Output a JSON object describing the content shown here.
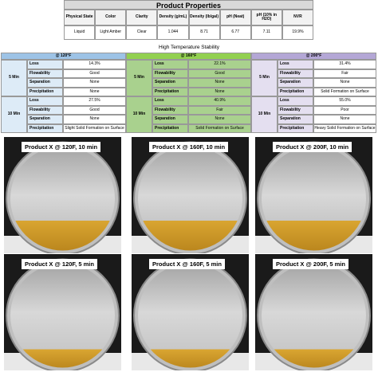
{
  "header": {
    "title": "Product Properties"
  },
  "properties": {
    "columns": [
      "Physical State",
      "Color",
      "Clarity",
      "Density (g/mL)",
      "Density (lb/gal)",
      "pH (Neat)",
      "pH (10% in H2O)",
      "NVR"
    ],
    "values": [
      "Liquid",
      "Light Amber",
      "Clear",
      "1.044",
      "8.71",
      "6.77",
      "7.11",
      "19.9%"
    ]
  },
  "stability": {
    "title": "High Temperature Stability",
    "groups": [
      {
        "label": "@ 120°F",
        "rows": [
          {
            "time": "5 Min",
            "items": [
              {
                "label": "Loss",
                "value": "14.3%"
              },
              {
                "label": "Flowability",
                "value": "Good"
              },
              {
                "label": "Separation",
                "value": "None"
              },
              {
                "label": "Precipitation",
                "value": "None"
              }
            ]
          },
          {
            "time": "10 Min",
            "items": [
              {
                "label": "Loss",
                "value": "27.5%"
              },
              {
                "label": "Flowability",
                "value": "Good"
              },
              {
                "label": "Separation",
                "value": "None"
              },
              {
                "label": "Precipitation",
                "value": "Slight Solid Formation on Surface"
              }
            ]
          }
        ]
      },
      {
        "label": "@ 160°F",
        "rows": [
          {
            "time": "5 Min",
            "items": [
              {
                "label": "Loss",
                "value": "22.1%"
              },
              {
                "label": "Flowability",
                "value": "Good"
              },
              {
                "label": "Separation",
                "value": "None"
              },
              {
                "label": "Precipitation",
                "value": "None"
              }
            ]
          },
          {
            "time": "10 Min",
            "items": [
              {
                "label": "Loss",
                "value": "40.9%"
              },
              {
                "label": "Flowability",
                "value": "Fair"
              },
              {
                "label": "Separation",
                "value": "None"
              },
              {
                "label": "Precipitation",
                "value": "Solid Formation on Surface"
              }
            ]
          }
        ]
      },
      {
        "label": "@ 200°F",
        "rows": [
          {
            "time": "5 Min",
            "items": [
              {
                "label": "Loss",
                "value": "31.4%"
              },
              {
                "label": "Flowability",
                "value": "Fair"
              },
              {
                "label": "Separation",
                "value": "None"
              },
              {
                "label": "Precipitation",
                "value": "Solid Formation on Surface"
              }
            ]
          },
          {
            "time": "10 Min",
            "items": [
              {
                "label": "Loss",
                "value": "55.0%"
              },
              {
                "label": "Flowability",
                "value": "Poor"
              },
              {
                "label": "Separation",
                "value": "None"
              },
              {
                "label": "Precipitation",
                "value": "Heavy Solid Formation on Surface"
              }
            ]
          }
        ]
      }
    ]
  },
  "photos": [
    {
      "caption": "Product X @ 120F, 10 min"
    },
    {
      "caption": "Product X @ 160F, 10 min"
    },
    {
      "caption": "Product X @ 200F, 10 min"
    },
    {
      "caption": "Product X @ 120F, 5 min"
    },
    {
      "caption": "Product X @ 160F, 5 min"
    },
    {
      "caption": "Product X @ 200F, 5 min"
    }
  ]
}
